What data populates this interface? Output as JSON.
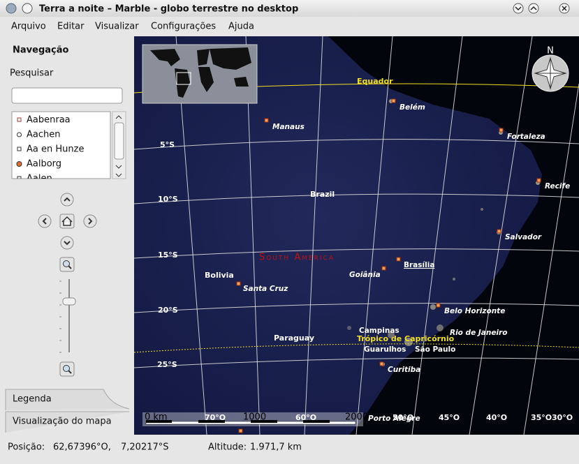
{
  "window": {
    "title": "Terra a noite – Marble - globo terrestre no desktop"
  },
  "menu": [
    "Arquivo",
    "Editar",
    "Visualizar",
    "Configurações",
    "Ajuda"
  ],
  "sidebar": {
    "title": "Navegação",
    "search_label": "Pesquisar",
    "places": [
      "Aabenraa",
      "Aachen",
      "Aa en Hunze",
      "Aalborg",
      "Aalen"
    ],
    "tabs": [
      "Legenda",
      "Visualização do mapa"
    ]
  },
  "map": {
    "equator": "Equador",
    "tropic": "Trópico de Capricórnio",
    "continent": "South America",
    "countries": [
      "Brazil",
      "Bolivia",
      "Paraguay"
    ],
    "cities": [
      "Belém",
      "Manaus",
      "Fortaleza",
      "Recife",
      "Salvador",
      "Brasília",
      "Goiânia",
      "Santa Cruz",
      "Belo Horizonte",
      "Campinas",
      "Rio de Janeiro",
      "Guarulhos",
      "São Paulo",
      "Curitiba",
      "Porto Alegre"
    ],
    "latitudes": [
      "5°S",
      "10°S",
      "15°S",
      "20°S",
      "25°S"
    ],
    "longitudes": [
      "70°O",
      "60°O",
      "50°O",
      "45°O",
      "40°O",
      "35°O",
      "30°O"
    ],
    "scale": [
      "0 km",
      "1000",
      "2000"
    ],
    "compass": "N"
  },
  "status": {
    "position_label": "Posição:",
    "longitude": "62,67396°O,",
    "latitude": "7,20217°S",
    "altitude_label": "Altitude:",
    "altitude": "1.971,7 km"
  }
}
